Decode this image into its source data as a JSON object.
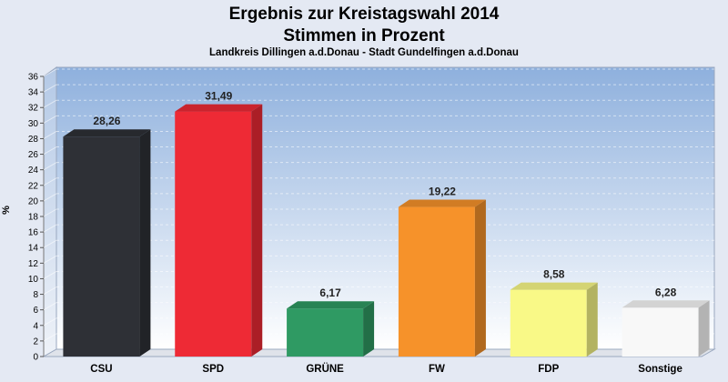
{
  "chart_data": {
    "type": "bar",
    "title": "Ergebnis zur Kreistagswahl 2014",
    "title_line2": "Stimmen in Prozent",
    "subtitle": "Landkreis Dillingen a.d.Donau - Stadt Gundelfingen a.d.Donau",
    "ylabel": "%",
    "xlabel": "",
    "ylim": [
      0,
      36
    ],
    "y_ticks": [
      "0",
      "2",
      "4",
      "6",
      "8",
      "10",
      "12",
      "14",
      "16",
      "18",
      "20",
      "22",
      "24",
      "26",
      "28",
      "30",
      "32",
      "34",
      "36"
    ],
    "categories": [
      "CSU",
      "SPD",
      "GRÜNE",
      "FW",
      "FDP",
      "Sonstige"
    ],
    "values": [
      28.26,
      31.49,
      6.17,
      19.22,
      8.58,
      6.28
    ],
    "value_labels": [
      "28,26",
      "31,49",
      "6,17",
      "19,22",
      "8,58",
      "6,28"
    ],
    "colors": [
      "#2e3036",
      "#ee2a35",
      "#2f9a63",
      "#f6922a",
      "#f9f987",
      "#f8f8f8"
    ],
    "grid": true,
    "legend": "none"
  }
}
